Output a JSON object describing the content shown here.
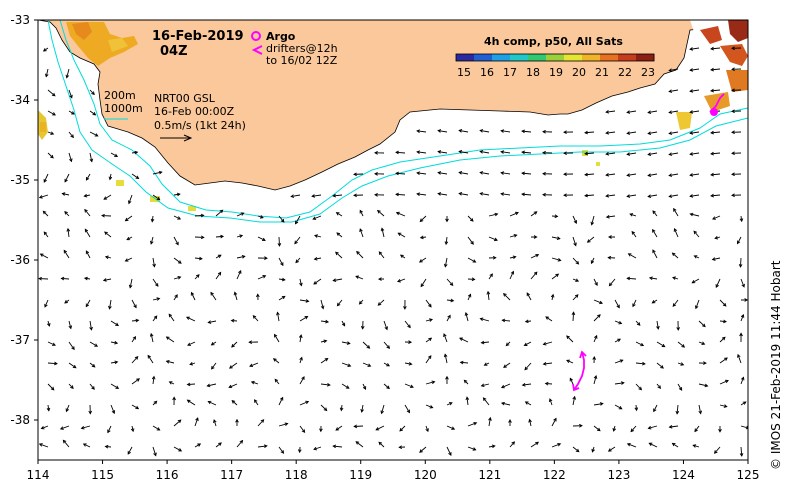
{
  "map": {
    "date": "16-Feb-2019",
    "hour": "04Z",
    "legend": {
      "argo_label": "Argo",
      "drifter_line1": "drifters@12h",
      "drifter_line2": "to 16/02 12Z",
      "argo_color": "#ff00ff"
    },
    "info": {
      "contour_200": "200m",
      "contour_1000": "1000m",
      "product": "NRT00 GSL",
      "valid": "16-Feb 00:00Z",
      "speed_scale": "0.5m/s (1kt 24h)"
    },
    "colorbar": {
      "title": "4h comp, p50, All Sats",
      "ticks": [
        "15",
        "16",
        "17",
        "18",
        "19",
        "20",
        "21",
        "22",
        "23"
      ],
      "colors": [
        "#2a2aa0",
        "#1e5fd2",
        "#1ea0e6",
        "#20c8c8",
        "#30c870",
        "#9ad03a",
        "#e6e632",
        "#f0b428",
        "#e87020",
        "#c83c1e",
        "#8c1e14"
      ]
    },
    "x_ticks": [
      "114",
      "115",
      "116",
      "117",
      "118",
      "119",
      "120",
      "121",
      "122",
      "123",
      "124",
      "125"
    ],
    "y_ticks": [
      "-33",
      "-34",
      "-35",
      "-36",
      "-37",
      "-38"
    ],
    "credit": "© IMOS 21-Feb-2019 11:44 Hobart",
    "colors": {
      "land": "#fac89b",
      "contour": "#00dcdc",
      "frame": "#000000"
    }
  }
}
